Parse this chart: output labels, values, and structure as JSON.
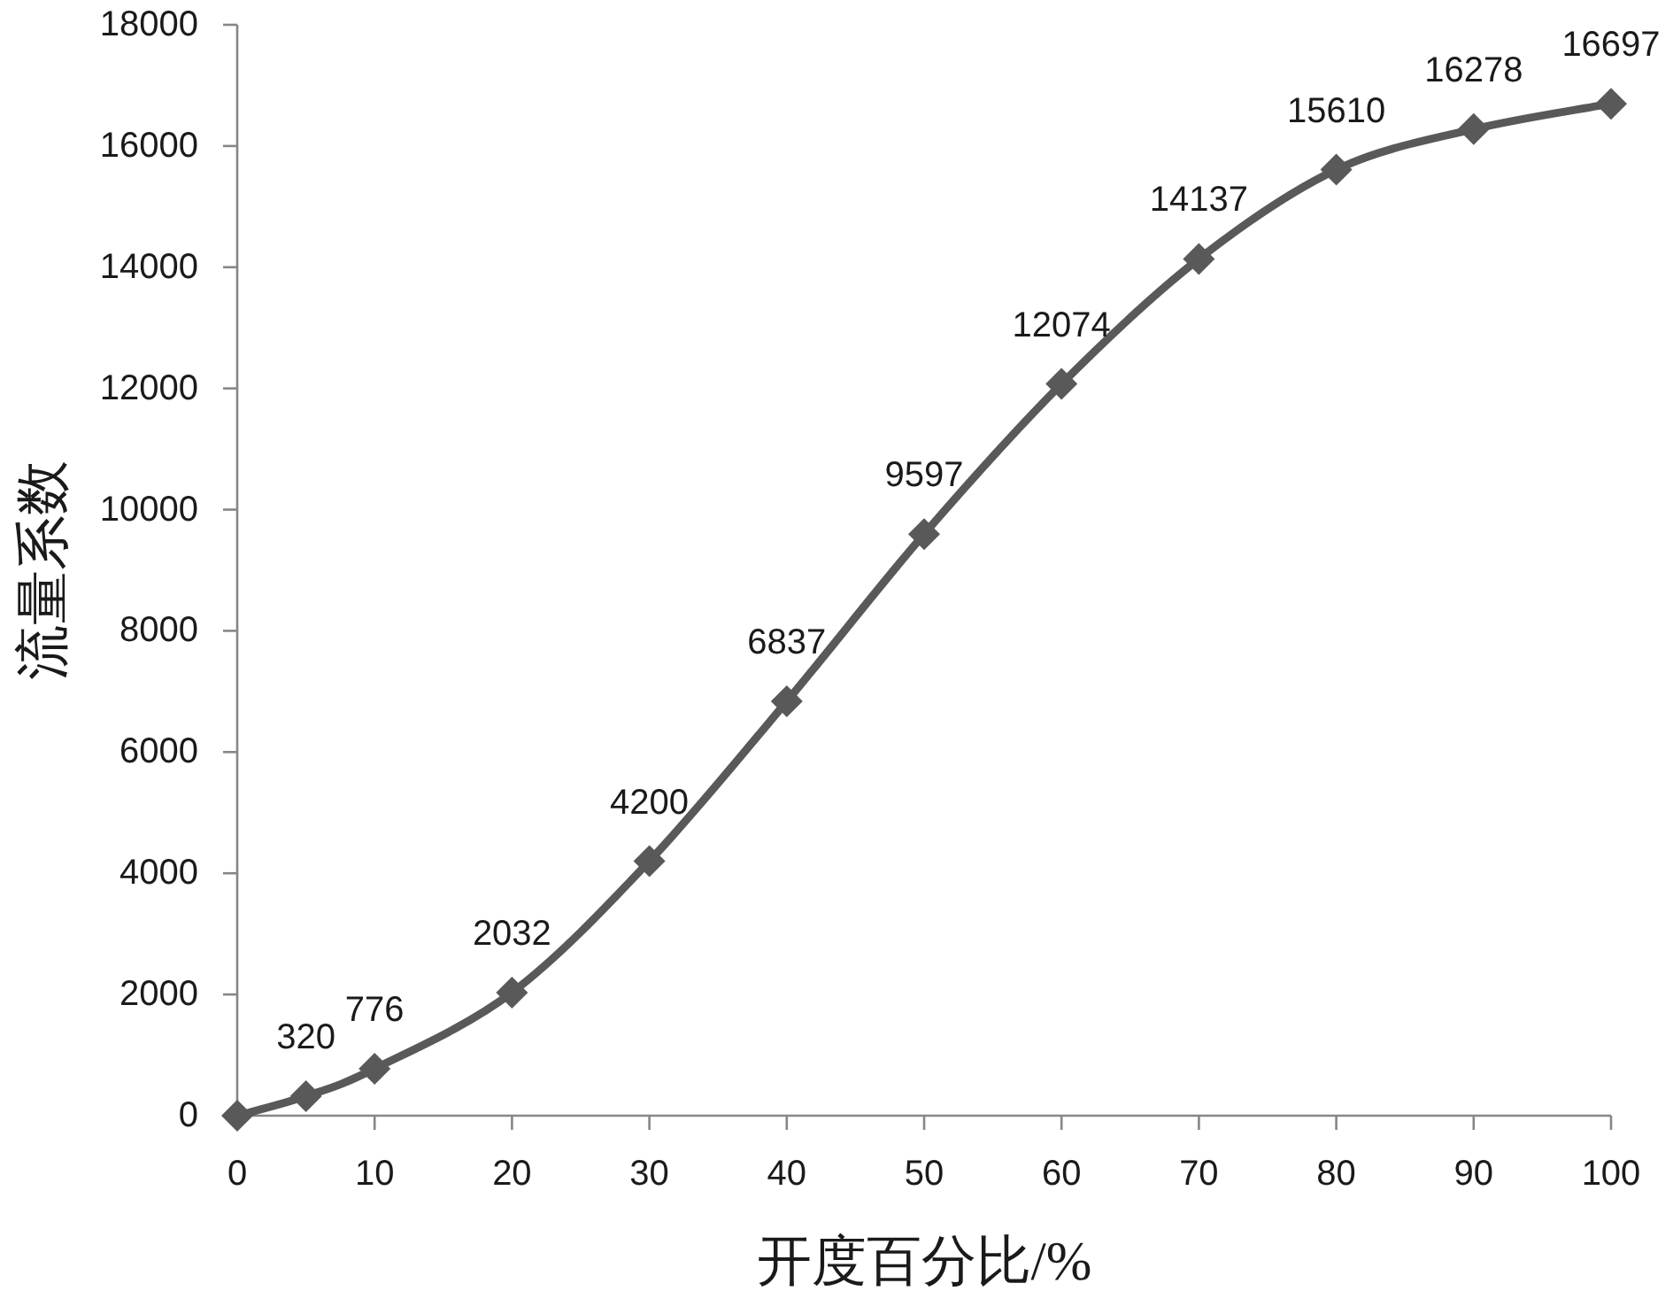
{
  "chart_data": {
    "type": "line",
    "xlabel": "开度百分比/%",
    "ylabel": "流量系数",
    "x": [
      0,
      5,
      10,
      20,
      30,
      40,
      50,
      60,
      70,
      80,
      90,
      100
    ],
    "values": [
      0,
      320,
      776,
      2032,
      4200,
      6837,
      9597,
      12074,
      14137,
      15610,
      16278,
      16697
    ],
    "value_labels": [
      null,
      "320",
      "776",
      "2032",
      "4200",
      "6837",
      "9597",
      "12074",
      "14137",
      "15610",
      "16278",
      "16697"
    ],
    "color": "#595959",
    "marker": "diamond",
    "line_style": "solid",
    "grid": false,
    "xlim": [
      0,
      100
    ],
    "xticks": [
      0,
      10,
      20,
      30,
      40,
      50,
      60,
      70,
      80,
      90,
      100
    ],
    "ylim": [
      0,
      18000
    ],
    "yticks": [
      0,
      2000,
      4000,
      6000,
      8000,
      10000,
      12000,
      14000,
      16000,
      18000
    ]
  }
}
